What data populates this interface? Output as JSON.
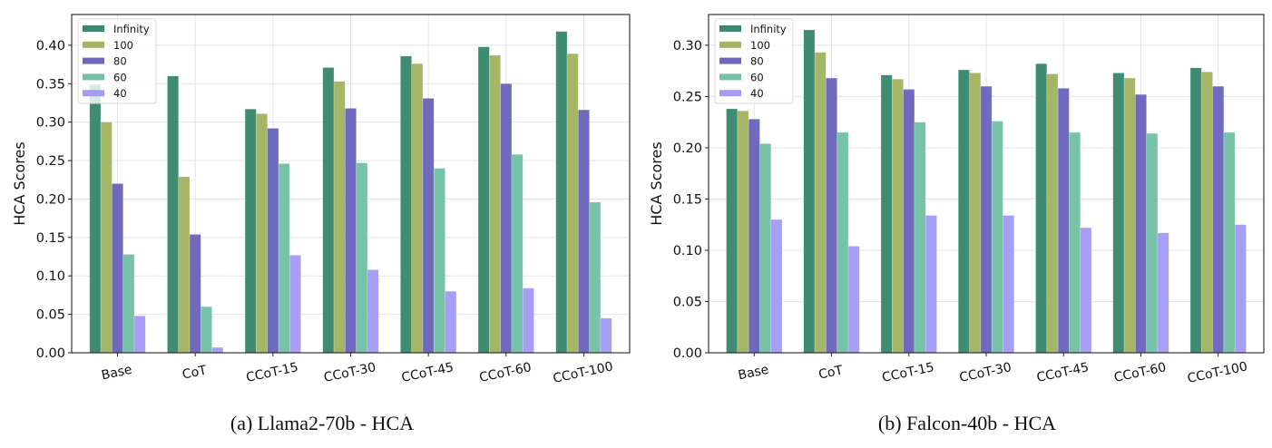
{
  "chart_data": [
    {
      "type": "bar",
      "title": "",
      "caption": "(a) Llama2-70b - HCA",
      "xlabel": "",
      "ylabel": "HCA Scores",
      "ylim": [
        0,
        0.44
      ],
      "yticks": [
        "0.00",
        "0.05",
        "0.10",
        "0.15",
        "0.20",
        "0.25",
        "0.30",
        "0.35",
        "0.40"
      ],
      "grid": true,
      "legend_position": "top-left",
      "categories": [
        "Base",
        "CoT",
        "CCoT-15",
        "CCoT-30",
        "CCoT-45",
        "CCoT-60",
        "CCoT-100"
      ],
      "series": [
        {
          "name": "Infinity",
          "color": "#3b8a70",
          "values": [
            0.349,
            0.36,
            0.317,
            0.371,
            0.386,
            0.398,
            0.418
          ]
        },
        {
          "name": "100",
          "color": "#a3b563",
          "values": [
            0.3,
            0.229,
            0.311,
            0.353,
            0.376,
            0.387,
            0.389
          ]
        },
        {
          "name": "80",
          "color": "#6d67bd",
          "values": [
            0.22,
            0.154,
            0.292,
            0.318,
            0.331,
            0.35,
            0.316
          ]
        },
        {
          "name": "60",
          "color": "#73c2a6",
          "values": [
            0.128,
            0.06,
            0.246,
            0.247,
            0.24,
            0.258,
            0.196
          ]
        },
        {
          "name": "40",
          "color": "#a59cf5",
          "values": [
            0.048,
            0.007,
            0.127,
            0.108,
            0.08,
            0.084,
            0.045
          ]
        }
      ]
    },
    {
      "type": "bar",
      "title": "",
      "caption": "(b) Falcon-40b - HCA",
      "xlabel": "",
      "ylabel": "HCA Scores",
      "ylim": [
        0,
        0.33
      ],
      "yticks": [
        "0.00",
        "0.05",
        "0.10",
        "0.15",
        "0.20",
        "0.25",
        "0.30"
      ],
      "grid": true,
      "legend_position": "top-left",
      "categories": [
        "Base",
        "CoT",
        "CCoT-15",
        "CCoT-30",
        "CCoT-45",
        "CCoT-60",
        "CCoT-100"
      ],
      "series": [
        {
          "name": "Infinity",
          "color": "#3b8a70",
          "values": [
            0.238,
            0.315,
            0.271,
            0.276,
            0.282,
            0.273,
            0.278
          ]
        },
        {
          "name": "100",
          "color": "#a3b563",
          "values": [
            0.236,
            0.293,
            0.267,
            0.273,
            0.272,
            0.268,
            0.274
          ]
        },
        {
          "name": "80",
          "color": "#6d67bd",
          "values": [
            0.228,
            0.268,
            0.257,
            0.26,
            0.258,
            0.252,
            0.26
          ]
        },
        {
          "name": "60",
          "color": "#73c2a6",
          "values": [
            0.204,
            0.215,
            0.225,
            0.226,
            0.215,
            0.214,
            0.215
          ]
        },
        {
          "name": "40",
          "color": "#a59cf5",
          "values": [
            0.13,
            0.104,
            0.134,
            0.134,
            0.122,
            0.117,
            0.125
          ]
        }
      ]
    }
  ]
}
